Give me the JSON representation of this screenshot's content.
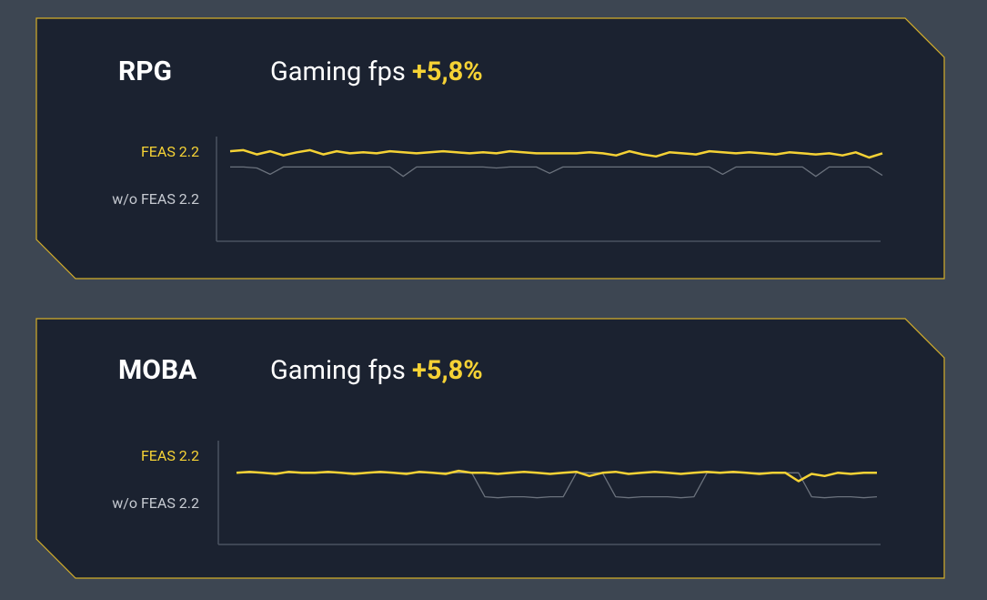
{
  "chart_data": [
    {
      "type": "line",
      "title": "RPG",
      "subtitle": "Gaming fps",
      "annotation": "+5,8%",
      "x": [
        0,
        1,
        2,
        3,
        4,
        5,
        6,
        7,
        8,
        9,
        10,
        11,
        12,
        13,
        14,
        15,
        16,
        17,
        18,
        19,
        20,
        21,
        22,
        23,
        24,
        25,
        26,
        27,
        28,
        29,
        30,
        31,
        32,
        33,
        34,
        35,
        36,
        37,
        38,
        39,
        40,
        41,
        42,
        43,
        44,
        45,
        46,
        47,
        48,
        49
      ],
      "xlim": [
        0,
        49
      ],
      "ylim": [
        0,
        100
      ],
      "series": [
        {
          "name": "w/o FEAS 2.2",
          "color": "#6b727d",
          "values": [
            71,
            71,
            70,
            64,
            71,
            71,
            71,
            71,
            71,
            71,
            71,
            71,
            71,
            62,
            71,
            71,
            71,
            71,
            71,
            71,
            70,
            71,
            71,
            71,
            65,
            71,
            71,
            71,
            71,
            71,
            71,
            71,
            71,
            71,
            71,
            71,
            71,
            64,
            71,
            71,
            71,
            71,
            71,
            71,
            62,
            71,
            71,
            71,
            71,
            63
          ]
        },
        {
          "name": "FEAS 2.2",
          "color": "#f5d235",
          "values": [
            86,
            87,
            83,
            86,
            82,
            85,
            87,
            83,
            86,
            84,
            85,
            84,
            86,
            85,
            84,
            85,
            86,
            85,
            84,
            85,
            84,
            86,
            85,
            84,
            84,
            84,
            84,
            85,
            84,
            82,
            86,
            83,
            81,
            85,
            84,
            83,
            86,
            85,
            84,
            85,
            84,
            83,
            85,
            84,
            83,
            84,
            82,
            85,
            80,
            84
          ]
        }
      ]
    },
    {
      "type": "line",
      "title": "MOBA",
      "subtitle": "Gaming fps",
      "annotation": "+5,8%",
      "x": [
        0,
        1,
        2,
        3,
        4,
        5,
        6,
        7,
        8,
        9,
        10,
        11,
        12,
        13,
        14,
        15,
        16,
        17,
        18,
        19,
        20,
        21,
        22,
        23,
        24,
        25,
        26,
        27,
        28,
        29,
        30,
        31,
        32,
        33,
        34,
        35,
        36,
        37,
        38,
        39,
        40,
        41,
        42,
        43,
        44,
        45,
        46,
        47,
        48,
        49
      ],
      "xlim": [
        0,
        49
      ],
      "ylim": [
        0,
        100
      ],
      "series": [
        {
          "name": "w/o FEAS 2.2",
          "color": "#6b727d",
          "values": [
            69,
            69,
            69,
            69,
            69,
            69,
            69,
            69,
            69,
            69,
            69,
            69,
            69,
            69,
            69,
            69,
            69,
            69,
            69,
            46,
            45,
            46,
            46,
            45,
            46,
            46,
            69,
            69,
            69,
            46,
            45,
            46,
            46,
            46,
            45,
            46,
            69,
            69,
            69,
            69,
            69,
            69,
            69,
            69,
            46,
            45,
            46,
            46,
            45,
            46
          ]
        },
        {
          "name": "FEAS 2.2",
          "color": "#f5d235",
          "values": [
            69,
            70,
            69,
            68,
            70,
            69,
            69,
            70,
            69,
            68,
            69,
            70,
            69,
            68,
            70,
            69,
            68,
            71,
            69,
            69,
            68,
            69,
            70,
            69,
            68,
            69,
            70,
            66,
            69,
            70,
            68,
            69,
            70,
            69,
            68,
            69,
            70,
            69,
            70,
            69,
            68,
            69,
            69,
            61,
            68,
            66,
            69,
            68,
            69,
            69
          ]
        }
      ]
    }
  ]
}
